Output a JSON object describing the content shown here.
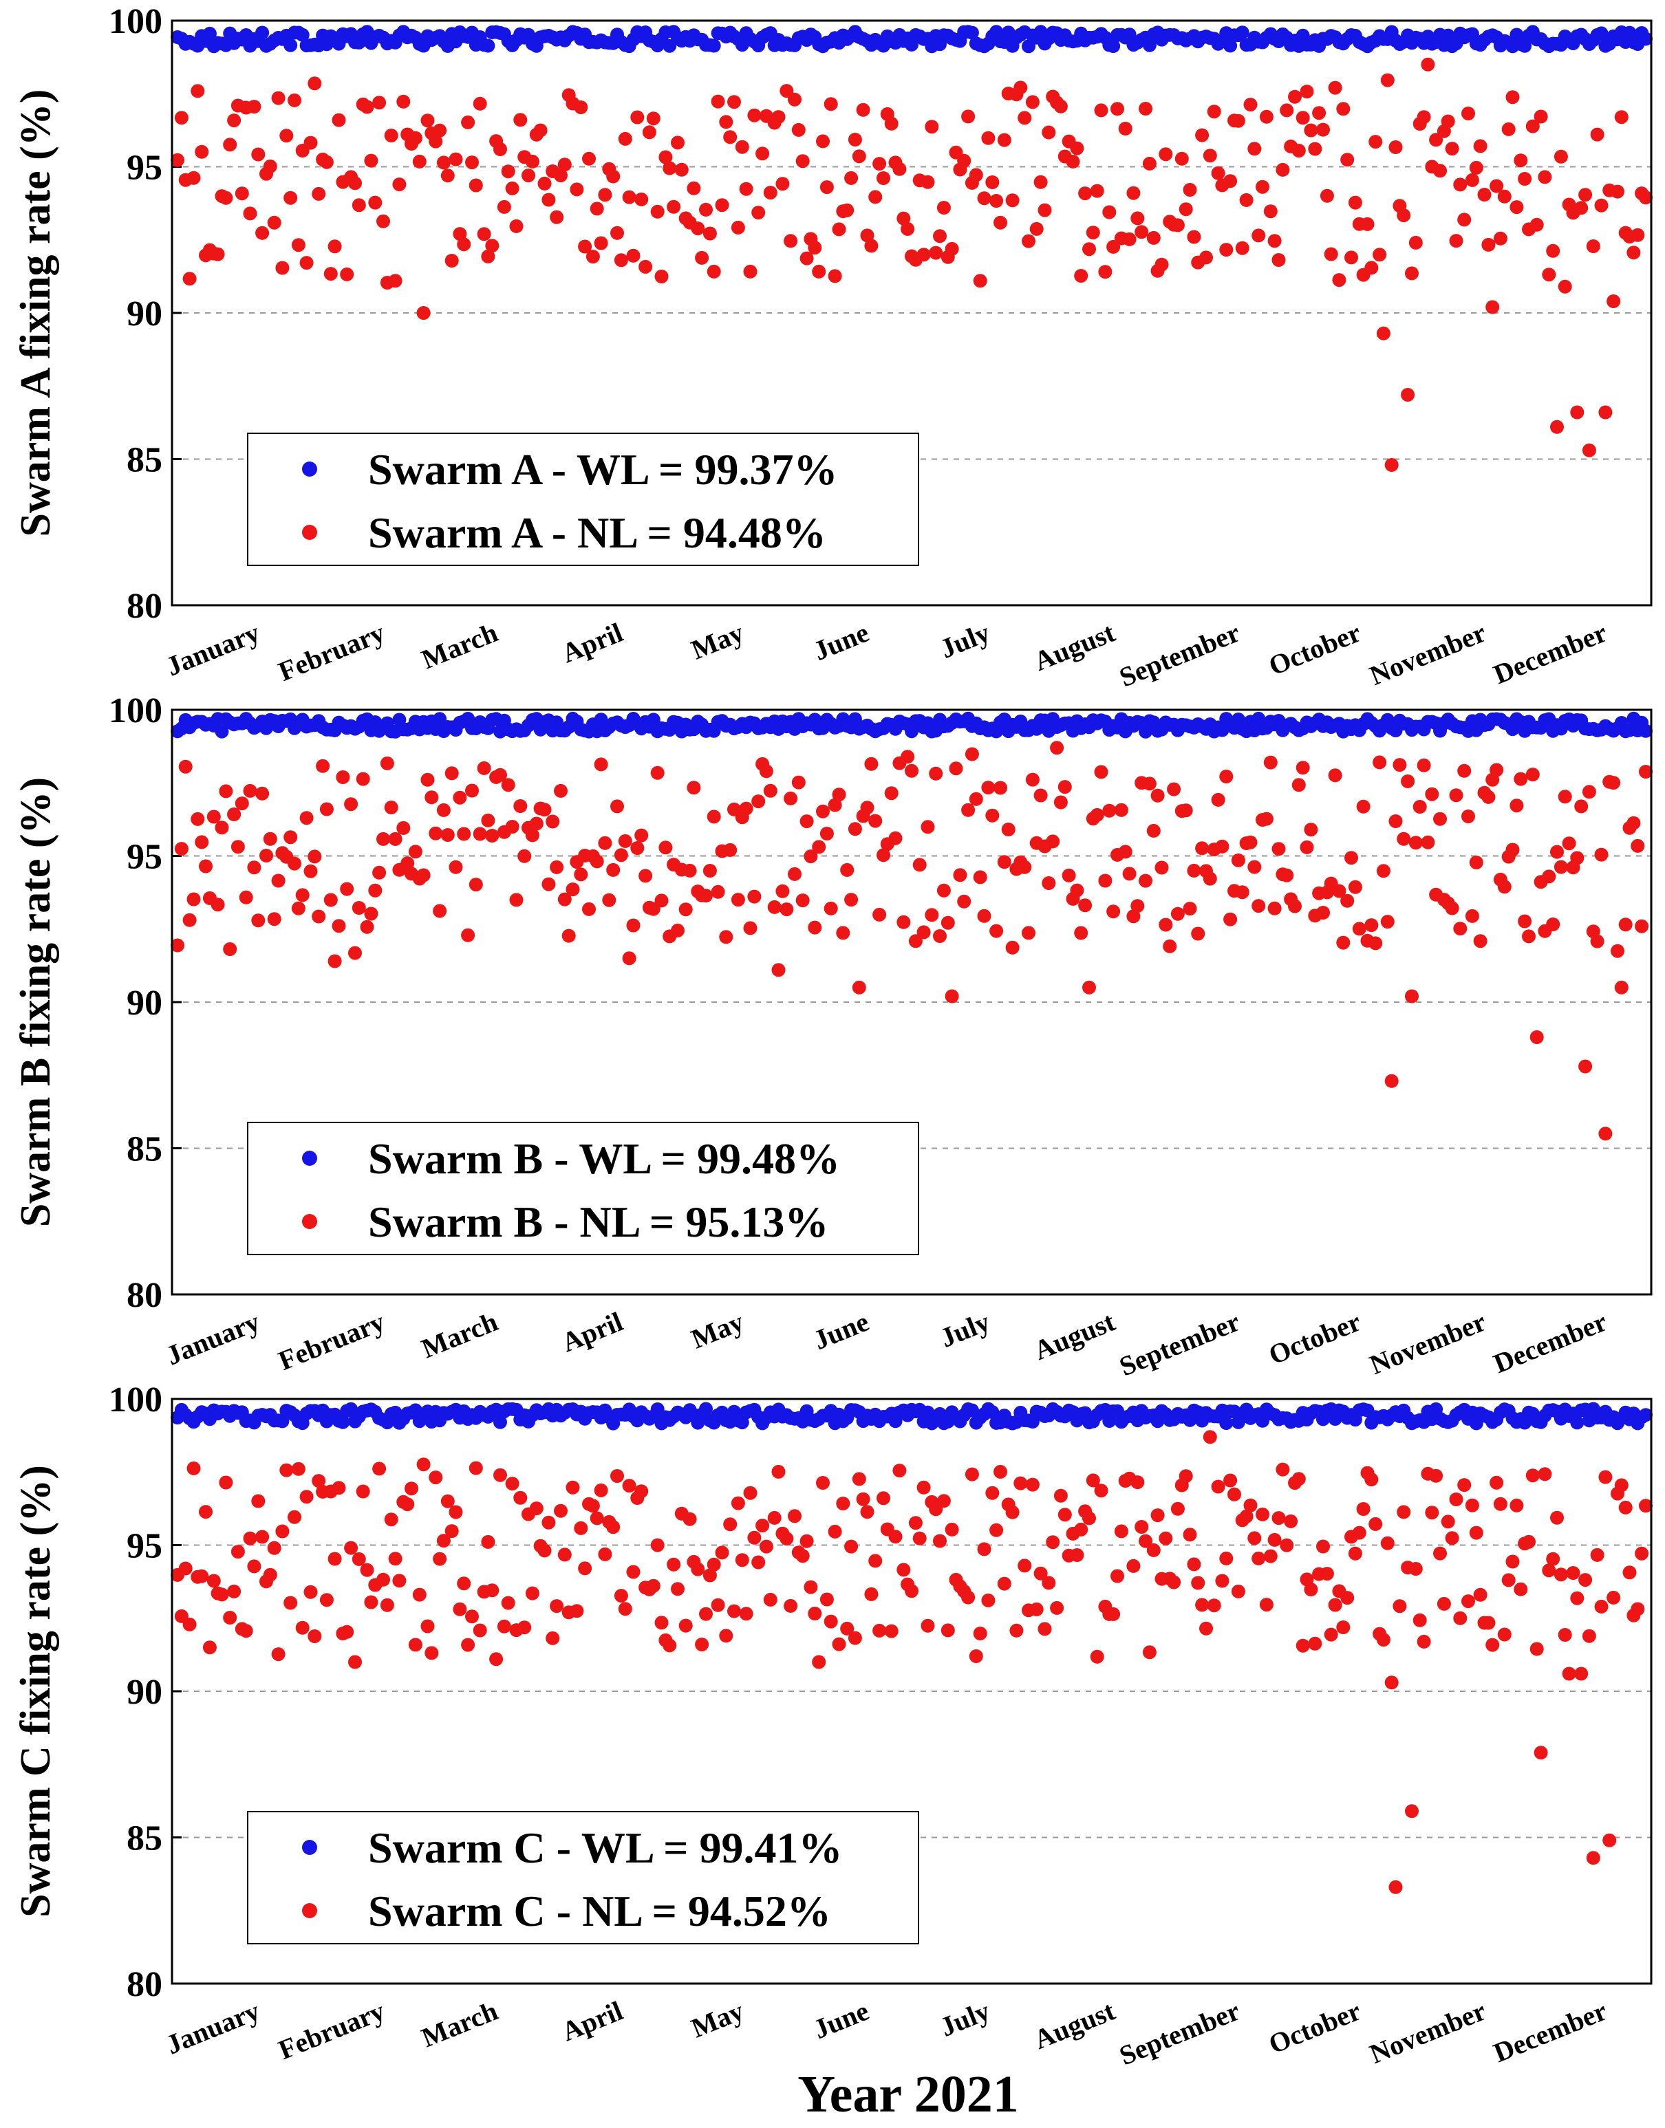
{
  "chart_data": [
    {
      "type": "scatter",
      "ylabel": "Swarm A fixing rate (%)",
      "ylim": [
        80,
        100
      ],
      "yticks": [
        80,
        85,
        90,
        95,
        100
      ],
      "categories": [
        "January",
        "February",
        "March",
        "April",
        "May",
        "June",
        "July",
        "August",
        "September",
        "October",
        "November",
        "December"
      ],
      "xlim": [
        1,
        365
      ],
      "grid": "horizontal dashed",
      "legend_position": "bottom-left",
      "series": [
        {
          "name": "Swarm A - WL = 99.37%",
          "color": "#1515e6",
          "mean": 99.37,
          "spread": 0.5,
          "outliers": []
        },
        {
          "name": "Swarm A - NL = 94.48%",
          "color": "#ec1616",
          "mean": 94.48,
          "spread": 6.3,
          "outliers": [
            [
              62,
              90.0
            ],
            [
              200,
              91.1
            ],
            [
              300,
              89.3
            ],
            [
              302,
              84.8
            ],
            [
              306,
              87.2
            ],
            [
              311,
              98.5
            ],
            [
              343,
              86.1
            ],
            [
              348,
              86.6
            ],
            [
              351,
              85.3
            ],
            [
              355,
              86.6
            ],
            [
              357,
              90.4
            ],
            [
              327,
              90.2
            ],
            [
              345,
              90.9
            ]
          ]
        }
      ]
    },
    {
      "type": "scatter",
      "ylabel": "Swarm B fixing rate (%)",
      "ylim": [
        80,
        100
      ],
      "yticks": [
        80,
        85,
        90,
        95,
        100
      ],
      "categories": [
        "January",
        "February",
        "March",
        "April",
        "May",
        "June",
        "July",
        "August",
        "September",
        "October",
        "November",
        "December"
      ],
      "xlim": [
        1,
        365
      ],
      "grid": "horizontal dashed",
      "legend_position": "bottom-left",
      "series": [
        {
          "name": "Swarm B - WL = 99.48%",
          "color": "#1515e6",
          "mean": 99.48,
          "spread": 0.45,
          "outliers": []
        },
        {
          "name": "Swarm B - NL = 95.13%",
          "color": "#ec1616",
          "mean": 95.13,
          "spread": 6.2,
          "outliers": [
            [
              40,
              91.4
            ],
            [
              113,
              91.5
            ],
            [
              150,
              91.1
            ],
            [
              170,
              90.5
            ],
            [
              193,
              90.2
            ],
            [
              219,
              98.7
            ],
            [
              227,
              90.5
            ],
            [
              302,
              87.3
            ],
            [
              307,
              90.2
            ],
            [
              310,
              98.1
            ],
            [
              338,
              88.8
            ],
            [
              350,
              87.8
            ],
            [
              355,
              85.5
            ],
            [
              359,
              90.5
            ]
          ]
        }
      ]
    },
    {
      "type": "scatter",
      "ylabel": "Swarm C fixing rate (%)",
      "ylim": [
        80,
        100
      ],
      "yticks": [
        80,
        85,
        90,
        95,
        100
      ],
      "categories": [
        "January",
        "February",
        "March",
        "April",
        "May",
        "June",
        "July",
        "August",
        "September",
        "October",
        "November",
        "December"
      ],
      "xlim": [
        1,
        365
      ],
      "grid": "horizontal dashed",
      "legend_position": "bottom-left",
      "series": [
        {
          "name": "Swarm C - WL = 99.41%",
          "color": "#1515e6",
          "mean": 99.41,
          "spread": 0.5,
          "outliers": []
        },
        {
          "name": "Swarm C - NL = 94.52%",
          "color": "#ec1616",
          "mean": 94.52,
          "spread": 6.2,
          "outliers": [
            [
              45,
              91.0
            ],
            [
              80,
              91.1
            ],
            [
              160,
              91.0
            ],
            [
              199,
              91.2
            ],
            [
              257,
              98.7
            ],
            [
              302,
              90.3
            ],
            [
              303,
              83.3
            ],
            [
              307,
              85.9
            ],
            [
              339,
              87.9
            ],
            [
              346,
              90.6
            ],
            [
              349,
              90.6
            ],
            [
              352,
              84.3
            ],
            [
              356,
              84.9
            ],
            [
              9,
              91.5
            ]
          ]
        }
      ]
    }
  ],
  "xlabel": "Year 2021"
}
